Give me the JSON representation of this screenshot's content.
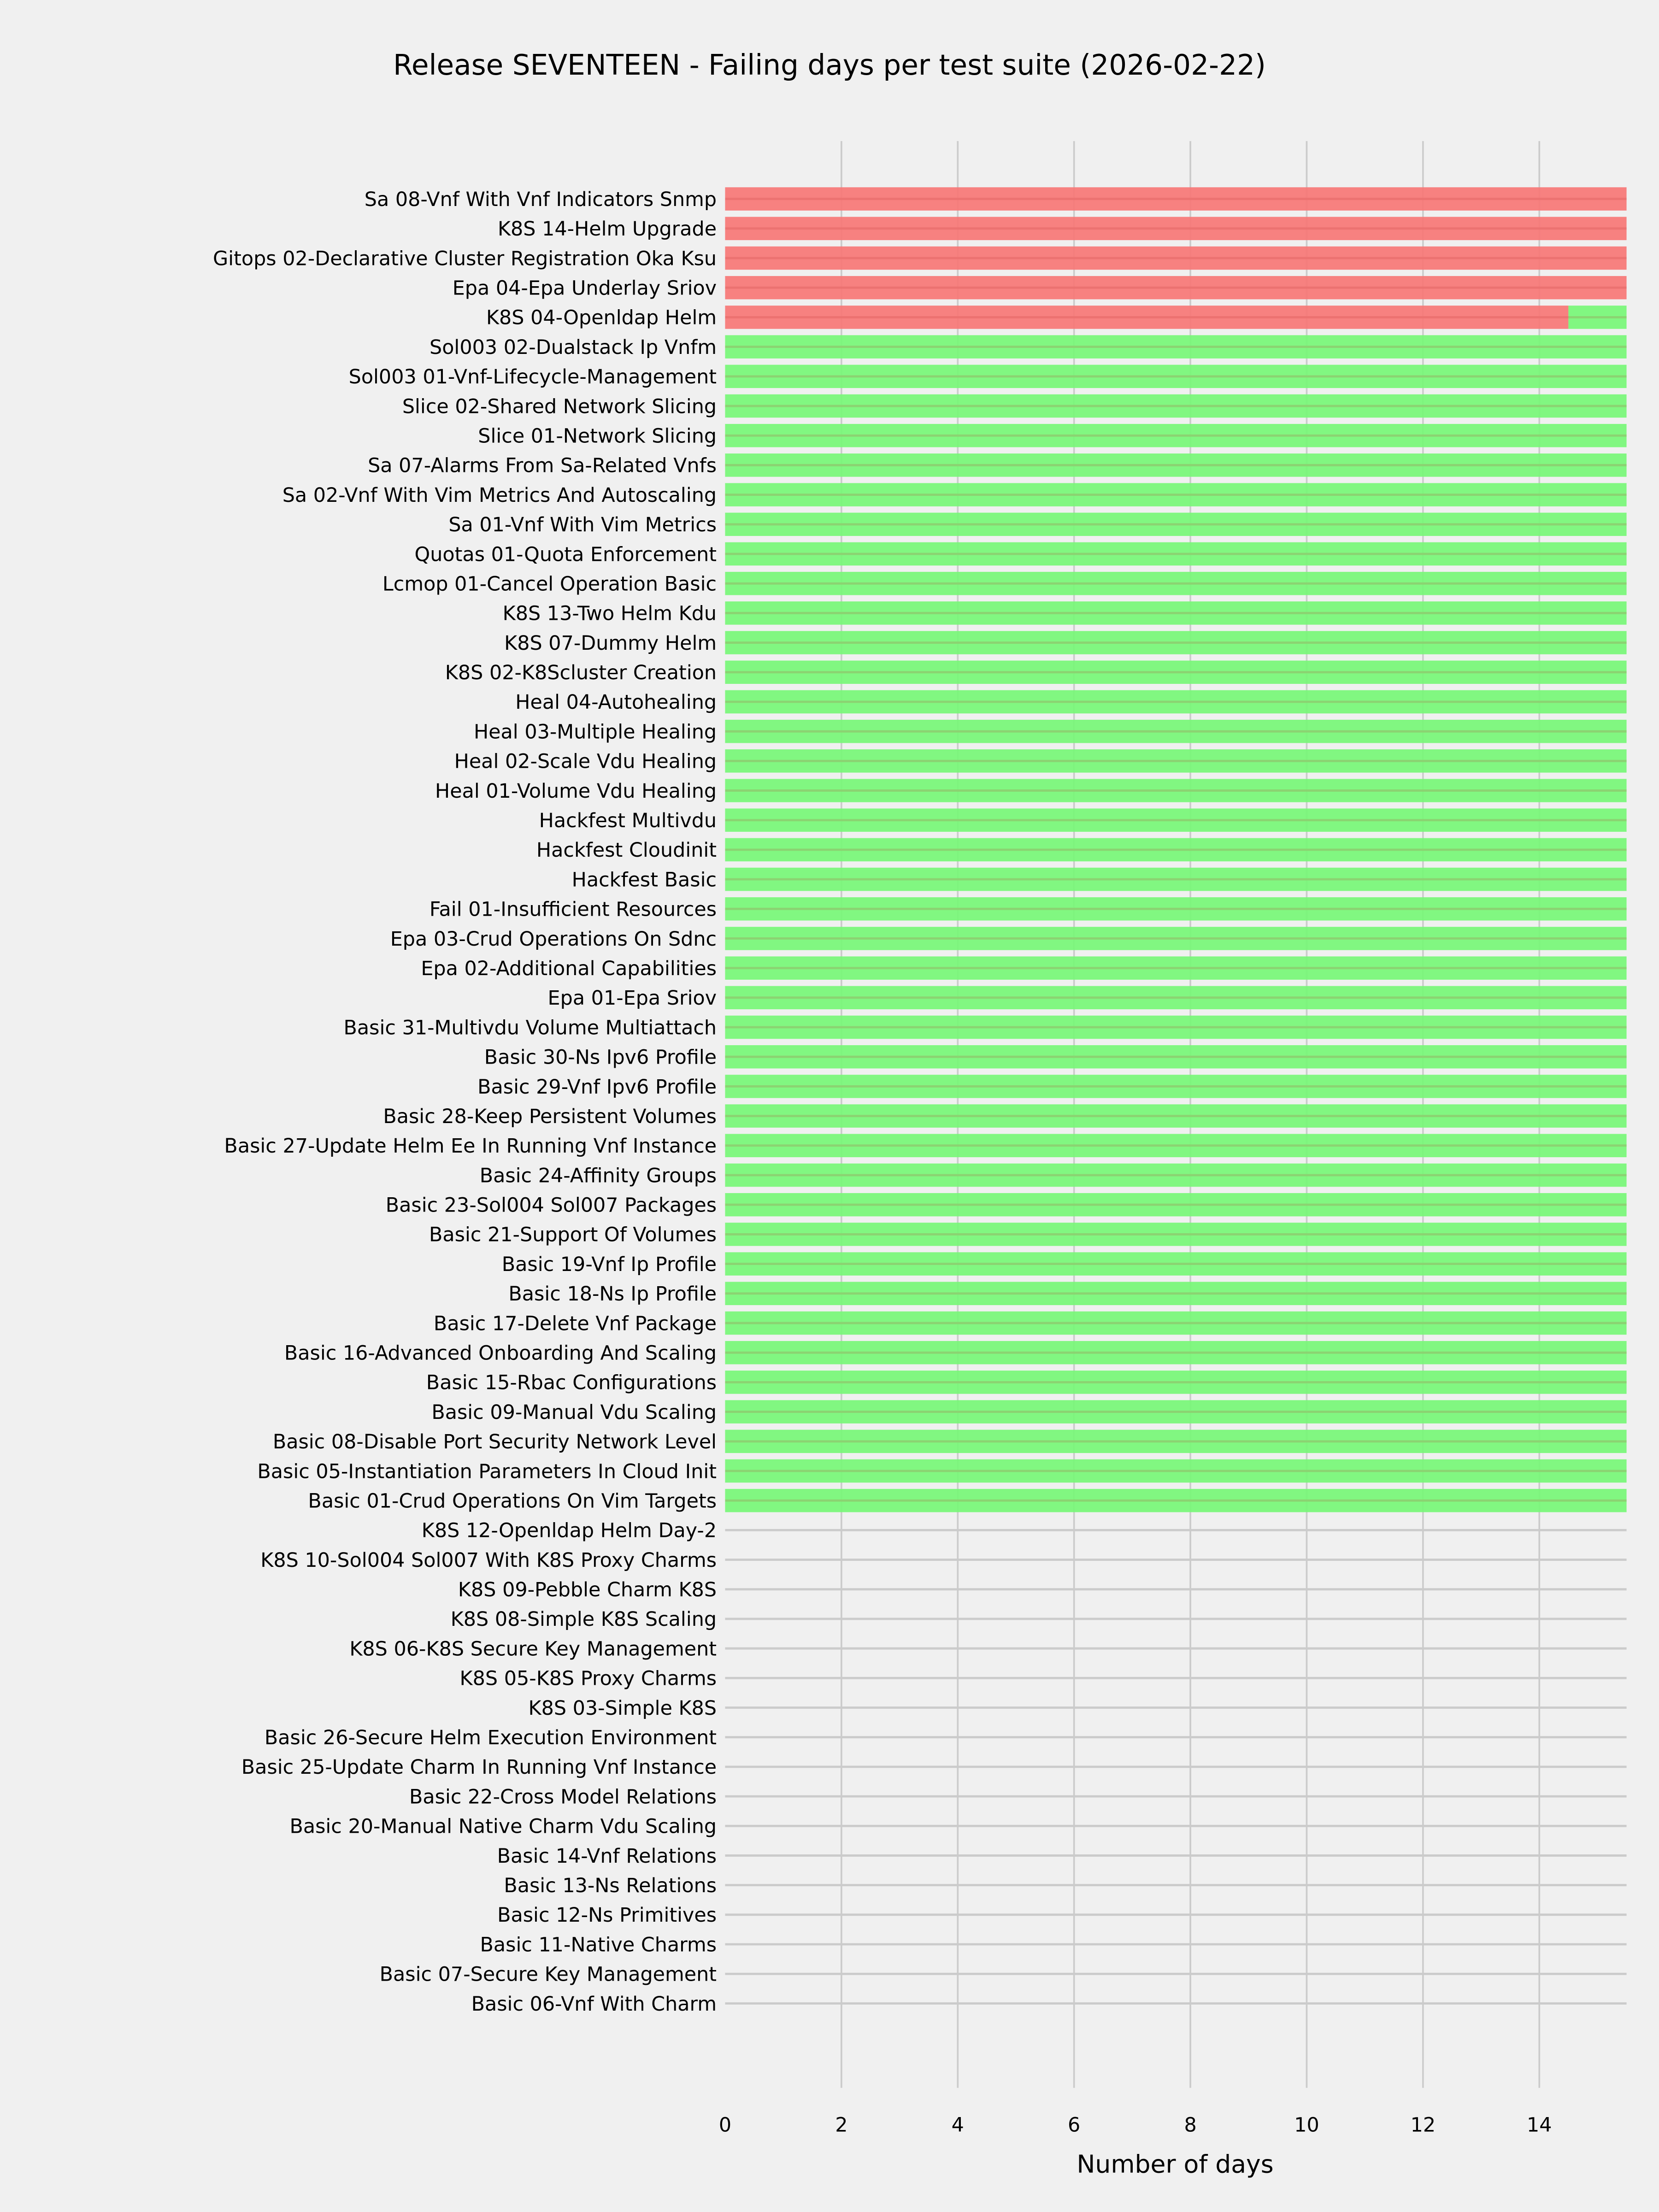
{
  "chart_data": {
    "type": "bar",
    "orientation": "horizontal",
    "stacked": true,
    "title": "Release SEVENTEEN - Failing days per test suite (2026-02-22)",
    "xlabel": "Number of days",
    "ylabel": "",
    "xlim": [
      0,
      15.5
    ],
    "xticks": [
      0,
      2,
      4,
      6,
      8,
      10,
      12,
      14
    ],
    "grid": true,
    "legend": "none",
    "background": "#f0f0f0",
    "categories": [
      "Sa 08-Vnf With Vnf Indicators Snmp",
      "K8S 14-Helm Upgrade",
      "Gitops 02-Declarative Cluster Registration Oka Ksu",
      "Epa 04-Epa Underlay Sriov",
      "K8S 04-Openldap Helm",
      "Sol003 02-Dualstack Ip Vnfm",
      "Sol003 01-Vnf-Lifecycle-Management",
      "Slice 02-Shared Network Slicing",
      "Slice 01-Network Slicing",
      "Sa 07-Alarms From Sa-Related Vnfs",
      "Sa 02-Vnf With Vim Metrics And Autoscaling",
      "Sa 01-Vnf With Vim Metrics",
      "Quotas 01-Quota Enforcement",
      "Lcmop 01-Cancel Operation Basic",
      "K8S 13-Two Helm Kdu",
      "K8S 07-Dummy Helm",
      "K8S 02-K8Scluster Creation",
      "Heal 04-Autohealing",
      "Heal 03-Multiple Healing",
      "Heal 02-Scale Vdu Healing",
      "Heal 01-Volume Vdu Healing",
      "Hackfest Multivdu",
      "Hackfest Cloudinit",
      "Hackfest Basic",
      "Fail 01-Insufficient Resources",
      "Epa 03-Crud Operations On Sdnc",
      "Epa 02-Additional Capabilities",
      "Epa 01-Epa Sriov",
      "Basic 31-Multivdu Volume Multiattach",
      "Basic 30-Ns Ipv6 Profile",
      "Basic 29-Vnf Ipv6 Profile",
      "Basic 28-Keep Persistent Volumes",
      "Basic 27-Update Helm Ee In Running Vnf Instance",
      "Basic 24-Affinity Groups",
      "Basic 23-Sol004 Sol007 Packages",
      "Basic 21-Support Of Volumes",
      "Basic 19-Vnf Ip Profile",
      "Basic 18-Ns Ip Profile",
      "Basic 17-Delete Vnf Package",
      "Basic 16-Advanced Onboarding And Scaling",
      "Basic 15-Rbac Configurations",
      "Basic 09-Manual Vdu Scaling",
      "Basic 08-Disable Port Security Network Level",
      "Basic 05-Instantiation Parameters In Cloud Init",
      "Basic 01-Crud Operations On Vim Targets",
      "K8S 12-Openldap Helm Day-2",
      "K8S 10-Sol004 Sol007 With K8S Proxy Charms",
      "K8S 09-Pebble Charm K8S",
      "K8S 08-Simple K8S Scaling",
      "K8S 06-K8S Secure Key Management",
      "K8S 05-K8S Proxy Charms",
      "K8S 03-Simple K8S",
      "Basic 26-Secure Helm Execution Environment",
      "Basic 25-Update Charm In Running Vnf Instance",
      "Basic 22-Cross Model Relations",
      "Basic 20-Manual Native Charm Vdu Scaling",
      "Basic 14-Vnf Relations",
      "Basic 13-Ns Relations",
      "Basic 12-Ns Primitives",
      "Basic 11-Native Charms",
      "Basic 07-Secure Key Management",
      "Basic 06-Vnf With Charm"
    ],
    "series": [
      {
        "color": "#f77776",
        "values": [
          15.5,
          15.5,
          15.5,
          15.5,
          14.5,
          0,
          0,
          0,
          0,
          0,
          0,
          0,
          0,
          0,
          0,
          0,
          0,
          0,
          0,
          0,
          0,
          0,
          0,
          0,
          0,
          0,
          0,
          0,
          0,
          0,
          0,
          0,
          0,
          0,
          0,
          0,
          0,
          0,
          0,
          0,
          0,
          0,
          0,
          0,
          0,
          0,
          0,
          0,
          0,
          0,
          0,
          0,
          0,
          0,
          0,
          0,
          0,
          0,
          0,
          0,
          0,
          0
        ]
      },
      {
        "color": "#77f777",
        "values": [
          0,
          0,
          0,
          0,
          1,
          15.5,
          15.5,
          15.5,
          15.5,
          15.5,
          15.5,
          15.5,
          15.5,
          15.5,
          15.5,
          15.5,
          15.5,
          15.5,
          15.5,
          15.5,
          15.5,
          15.5,
          15.5,
          15.5,
          15.5,
          15.5,
          15.5,
          15.5,
          15.5,
          15.5,
          15.5,
          15.5,
          15.5,
          15.5,
          15.5,
          15.5,
          15.5,
          15.5,
          15.5,
          15.5,
          15.5,
          15.5,
          15.5,
          15.5,
          15.5,
          0,
          0,
          0,
          0,
          0,
          0,
          0,
          0,
          0,
          0,
          0,
          0,
          0,
          0,
          0,
          0,
          0
        ]
      }
    ]
  }
}
